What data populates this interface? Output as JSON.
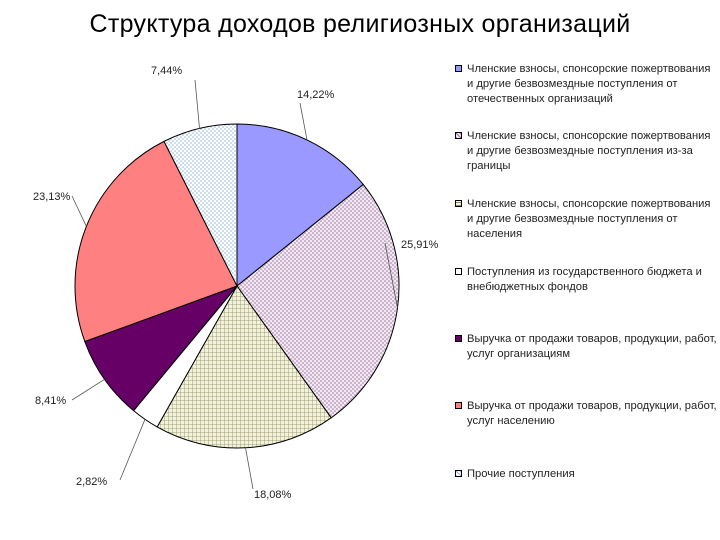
{
  "title": "Структура доходов религиозных организаций",
  "chart_data": {
    "type": "pie",
    "series": [
      {
        "label": "Членские взносы, спонсорские пожертвования и другие безвозмездные поступления от отечественных организаций",
        "value": 14.22,
        "display": "14,22%",
        "color": "#9999ff",
        "pattern": "solid"
      },
      {
        "label": "Членские взносы, спонсорские пожертвования и другие безвозмездные поступления из-за границы",
        "value": 25.91,
        "display": "25,91%",
        "color": "#e8dce8",
        "pattern": "dots-purple"
      },
      {
        "label": "Членские взносы, спонсорские пожертвования и другие безвозмездные поступления от населения",
        "value": 18.08,
        "display": "18,08%",
        "color": "#f4f4dc",
        "pattern": "grid-olive"
      },
      {
        "label": "Поступления из государственного бюджета и внебюджетных фондов",
        "value": 2.82,
        "display": "2,82%",
        "color": "#ffffff",
        "pattern": "solid"
      },
      {
        "label": "Выручка от продажи товаров, продукции, работ, услуг организациям",
        "value": 8.41,
        "display": "8,41%",
        "color": "#660066",
        "pattern": "solid"
      },
      {
        "label": "Выручка от продажи товаров, продукции, работ, услуг населению",
        "value": 23.13,
        "display": "23,13%",
        "color": "#ff8080",
        "pattern": "solid"
      },
      {
        "label": "Прочие поступления",
        "value": 7.44,
        "display": "7,44%",
        "color": "#ffffff",
        "pattern": "dots-blue"
      }
    ],
    "legend": "right"
  }
}
